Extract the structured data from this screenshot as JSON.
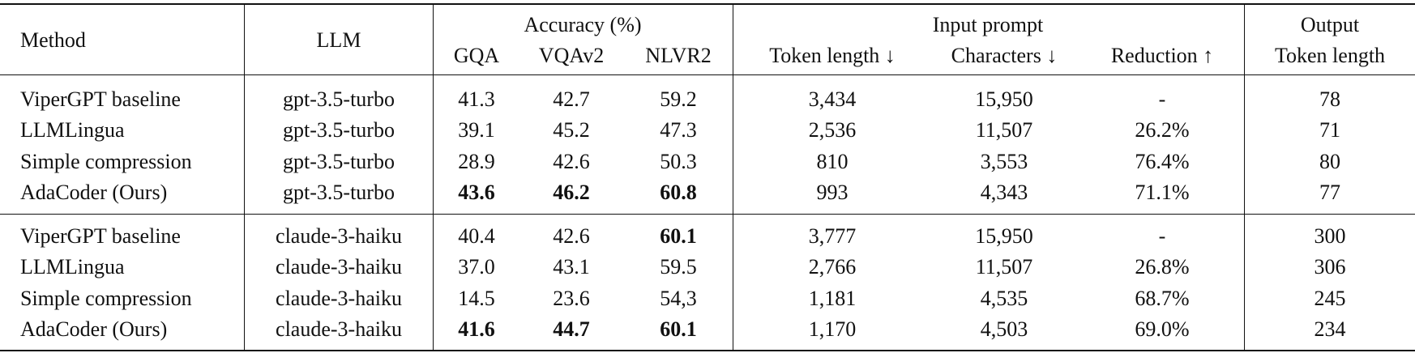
{
  "table": {
    "header": {
      "method": "Method",
      "llm": "LLM",
      "accuracy": "Accuracy (%)",
      "gqa": "GQA",
      "vqav2": "VQAv2",
      "nlvr2": "NLVR2",
      "input_prompt": "Input prompt",
      "token_length": "Token length ↓",
      "characters": "Characters ↓",
      "reduction": "Reduction ↑",
      "output": "Output",
      "output_token_length": "Token length"
    },
    "groups": [
      {
        "rows": [
          {
            "cells": [
              "ViperGPT baseline",
              "gpt-3.5-turbo",
              "41.3",
              "42.7",
              "59.2",
              "3,434",
              "15,950",
              "-",
              "78"
            ],
            "bold": []
          },
          {
            "cells": [
              "LLMLingua",
              "gpt-3.5-turbo",
              "39.1",
              "45.2",
              "47.3",
              "2,536",
              "11,507",
              "26.2%",
              "71"
            ],
            "bold": []
          },
          {
            "cells": [
              "Simple compression",
              "gpt-3.5-turbo",
              "28.9",
              "42.6",
              "50.3",
              "810",
              "3,553",
              "76.4%",
              "80"
            ],
            "bold": []
          },
          {
            "cells": [
              "AdaCoder (Ours)",
              "gpt-3.5-turbo",
              "43.6",
              "46.2",
              "60.8",
              "993",
              "4,343",
              "71.1%",
              "77"
            ],
            "bold": [
              2,
              3,
              4
            ]
          }
        ]
      },
      {
        "rows": [
          {
            "cells": [
              "ViperGPT baseline",
              "claude-3-haiku",
              "40.4",
              "42.6",
              "60.1",
              "3,777",
              "15,950",
              "-",
              "300"
            ],
            "bold": [
              4
            ]
          },
          {
            "cells": [
              "LLMLingua",
              "claude-3-haiku",
              "37.0",
              "43.1",
              "59.5",
              "2,766",
              "11,507",
              "26.8%",
              "306"
            ],
            "bold": []
          },
          {
            "cells": [
              "Simple compression",
              "claude-3-haiku",
              "14.5",
              "23.6",
              "54,3",
              "1,181",
              "4,535",
              "68.7%",
              "245"
            ],
            "bold": []
          },
          {
            "cells": [
              "AdaCoder (Ours)",
              "claude-3-haiku",
              "41.6",
              "44.7",
              "60.1",
              "1,170",
              "4,503",
              "69.0%",
              "234"
            ],
            "bold": [
              2,
              3,
              4
            ]
          }
        ]
      }
    ]
  }
}
